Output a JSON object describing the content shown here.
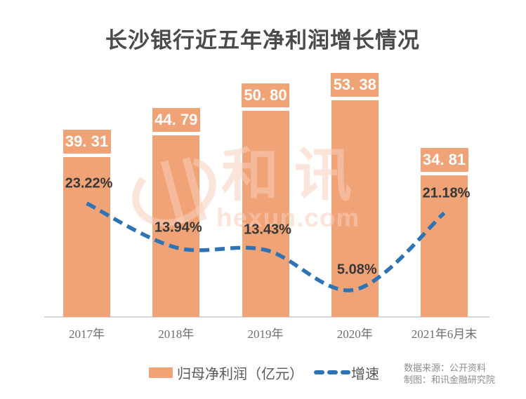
{
  "title": "长沙银行近五年净利润增长情况",
  "watermark": {
    "logo_text": "和讯",
    "domain": "hexun.com"
  },
  "legend": {
    "bar_label": "归母净利润（亿元）",
    "line_label": "增速"
  },
  "source": {
    "line1": "数据来源：公开资料",
    "line2": "制图：和讯金融研究院"
  },
  "colors": {
    "bar": "#F0A376",
    "line": "#2E74B5",
    "badge_text": "#FFFFFF",
    "title_text": "#4A4A4A",
    "growth_text": "#373737",
    "axis_line": "#D9D9D9",
    "tick_text": "#6E6E6E",
    "legend_text": "#595959",
    "source_text": "#8C8C8C"
  },
  "chart_data": {
    "type": "bar",
    "title": "长沙银行近五年净利润增长情况",
    "categories": [
      "2017年",
      "2018年",
      "2019年",
      "2020年",
      "2021年6月末"
    ],
    "series": [
      {
        "name": "归母净利润（亿元）",
        "type": "bar",
        "values": [
          39.31,
          44.79,
          50.8,
          53.38,
          34.81
        ],
        "data_labels": [
          "39. 31",
          "44. 79",
          "50. 80",
          "53. 38",
          "34. 81"
        ]
      },
      {
        "name": "增速",
        "type": "line",
        "style": "dashed",
        "unit": "%",
        "values": [
          23.22,
          13.94,
          13.43,
          5.08,
          21.18
        ],
        "data_labels": [
          "23.22%",
          "13.94%",
          "13.43%",
          "5.08%",
          "21.18%"
        ]
      }
    ],
    "xlabel": "",
    "ylabel": "",
    "legend_position": "bottom",
    "gridlines": false,
    "y_axis_visible": false
  }
}
